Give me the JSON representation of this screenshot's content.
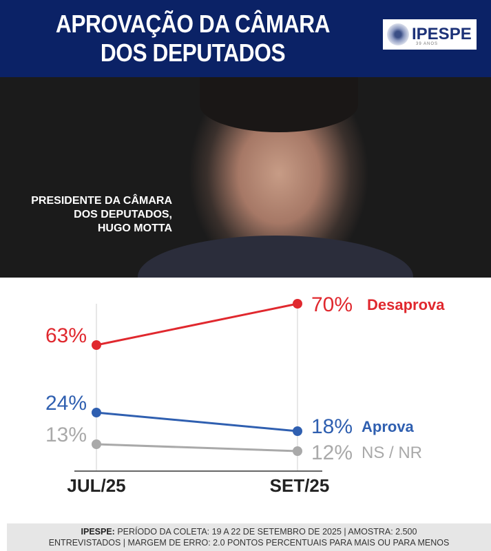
{
  "header": {
    "title_line1": "APROVAÇÃO DA CÂMARA",
    "title_line2": "DOS DEPUTADOS",
    "logo_name": "IPESPE",
    "logo_sub": "39 ANOS",
    "bg_color": "#0b2266"
  },
  "photo": {
    "caption_line1": "PRESIDENTE DA CÂMARA",
    "caption_line2": "DOS DEPUTADOS,",
    "caption_line3": "HUGO MOTTA"
  },
  "chart_data": {
    "type": "line",
    "categories": [
      "JUL/25",
      "SET/25"
    ],
    "series": [
      {
        "name": "Desaprova",
        "values": [
          63,
          70
        ],
        "labels": [
          "63%",
          "70%"
        ],
        "color": "#e0282e"
      },
      {
        "name": "Aprova",
        "values": [
          24,
          18
        ],
        "labels": [
          "24%",
          "18%"
        ],
        "color": "#2f5fb0"
      },
      {
        "name": "NS / NR",
        "values": [
          13,
          12
        ],
        "labels": [
          "13%",
          "12%"
        ],
        "color": "#a9a9a9"
      }
    ],
    "unit": "%"
  },
  "footer": {
    "source": "IPESPE:",
    "line1": "PERÍODO DA COLETA: 19 A 22 DE SETEMBRO DE 2025 | AMOSTRA: 2.500",
    "line2": "ENTREVISTADOS | MARGEM DE ERRO: 2.0 PONTOS PERCENTUAIS PARA MAIS OU PARA MENOS"
  }
}
